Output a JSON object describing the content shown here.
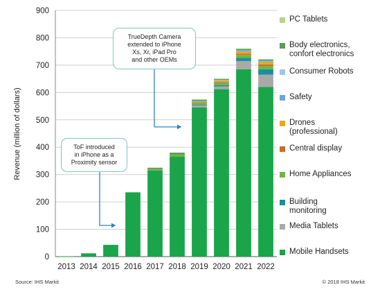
{
  "colors": {
    "Mobile Handsets": "#1aa54a",
    "Media Tablets": "#a9a9a9",
    "Building monitoring": "#18919b",
    "Home Appliances": "#77b43f",
    "Central display": "#c8702a",
    "Drones (professional)": "#e8a91e",
    "Safety": "#6aa7de",
    "Consumer Robots": "#9fc8e6",
    "Body electronics, confort electronics": "#5a9a5a",
    "PC Tablets": "#b7d48e"
  },
  "legend": [
    {
      "label": "PC Tablets",
      "series": "PC Tablets"
    },
    {
      "label": "Body electronics,\nconfort electronics",
      "series": "Body electronics, confort electronics"
    },
    {
      "label": "Consumer Robots",
      "series": "Consumer Robots"
    },
    {
      "label": "Safety",
      "series": "Safety"
    },
    {
      "label": "Drones\n(professional)",
      "series": "Drones (professional)"
    },
    {
      "label": "Central display",
      "series": "Central display"
    },
    {
      "label": "Home Appliances",
      "series": "Home Appliances"
    },
    {
      "label": "Building\nmonitoring",
      "series": "Building monitoring"
    },
    {
      "label": "Media Tablets",
      "series": "Media Tablets"
    },
    {
      "label": "Mobile Handsets",
      "series": "Mobile Handsets"
    }
  ],
  "annotations": {
    "tof": "ToF introduced\nin iPhone as a\nProximity sensor",
    "truedepth": "TrueDepth Camera\nextended to iPhone\nXs, Xr, iPad Pro\nand other OEMs"
  },
  "footer": {
    "source": "Source: IHS Markit",
    "copyright": "© 2018 IHS Markit"
  },
  "chart_data": {
    "type": "bar",
    "stacked": true,
    "title": "",
    "xlabel": "",
    "ylabel": "Revenue (million of dollars)",
    "ylim": [
      0,
      900
    ],
    "yticks": [
      0,
      100,
      200,
      300,
      400,
      500,
      600,
      700,
      800,
      900
    ],
    "grid": true,
    "legend_position": "right",
    "categories": [
      "2013",
      "2014",
      "2015",
      "2016",
      "2017",
      "2018",
      "2019",
      "2020",
      "2021",
      "2022"
    ],
    "series": [
      {
        "name": "Mobile Handsets",
        "values": [
          1,
          12,
          43,
          235,
          315,
          365,
          545,
          612,
          685,
          620
        ]
      },
      {
        "name": "Media Tablets",
        "values": [
          0,
          0,
          0,
          0,
          0,
          0,
          8,
          10,
          30,
          45
        ]
      },
      {
        "name": "Building monitoring",
        "values": [
          0,
          0,
          0,
          0,
          0,
          0,
          3,
          5,
          12,
          20
        ]
      },
      {
        "name": "Home Appliances",
        "values": [
          0,
          0,
          0,
          0,
          5,
          8,
          6,
          8,
          10,
          12
        ]
      },
      {
        "name": "Central display",
        "values": [
          0,
          0,
          0,
          0,
          0,
          0,
          2,
          3,
          5,
          6
        ]
      },
      {
        "name": "Drones (professional)",
        "values": [
          0,
          0,
          0,
          0,
          0,
          0,
          3,
          5,
          7,
          8
        ]
      },
      {
        "name": "Safety",
        "values": [
          0,
          0,
          0,
          0,
          0,
          0,
          1,
          2,
          3,
          3
        ]
      },
      {
        "name": "Consumer Robots",
        "values": [
          0,
          0,
          0,
          0,
          0,
          0,
          1,
          1,
          2,
          2
        ]
      },
      {
        "name": "Body electronics, confort electronics",
        "values": [
          0,
          0,
          0,
          0,
          5,
          7,
          5,
          4,
          5,
          4
        ]
      },
      {
        "name": "PC Tablets",
        "values": [
          0,
          0,
          0,
          0,
          0,
          0,
          1,
          1,
          2,
          2
        ]
      }
    ]
  }
}
